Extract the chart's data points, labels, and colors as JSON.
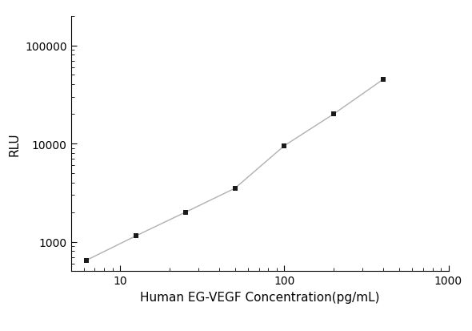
{
  "x": [
    6.25,
    12.5,
    25,
    50,
    100,
    200,
    400
  ],
  "y": [
    650,
    1150,
    2000,
    3500,
    9500,
    20000,
    45000
  ],
  "line_color": "#b0b0b0",
  "marker_color": "#1a1a1a",
  "marker_style": "s",
  "marker_size": 5,
  "xlabel": "Human EG-VEGF Concentration(pg/mL)",
  "ylabel": "RLU",
  "xlim": [
    5,
    1000
  ],
  "ylim": [
    500,
    200000
  ],
  "xticks": [
    10,
    100,
    1000
  ],
  "yticks": [
    1000,
    10000,
    100000
  ],
  "background_color": "#ffffff",
  "xlabel_fontsize": 11,
  "ylabel_fontsize": 11,
  "tick_fontsize": 10
}
